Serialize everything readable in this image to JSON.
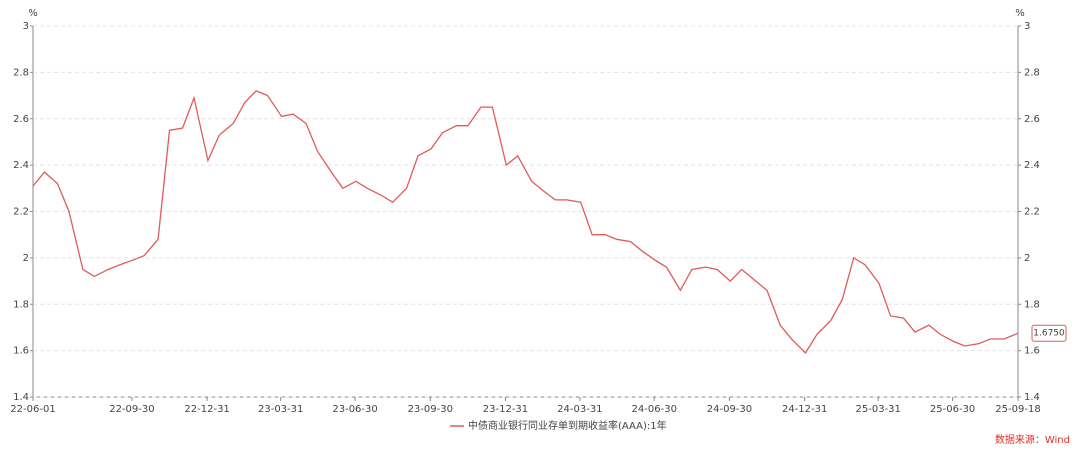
{
  "chart_data": {
    "type": "line",
    "unit_left": "%",
    "unit_right": "%",
    "x": [
      "22-06-01",
      "22-06-15",
      "22-07-01",
      "22-07-15",
      "22-08-01",
      "22-08-15",
      "22-09-01",
      "22-09-15",
      "22-10-01",
      "22-10-15",
      "22-11-01",
      "22-11-15",
      "22-12-01",
      "22-12-15",
      "23-01-01",
      "23-01-15",
      "23-02-01",
      "23-02-15",
      "23-03-01",
      "23-03-15",
      "23-04-01",
      "23-04-15",
      "23-05-01",
      "23-05-15",
      "23-06-01",
      "23-06-15",
      "23-07-01",
      "23-07-15",
      "23-08-01",
      "23-08-15",
      "23-09-01",
      "23-09-15",
      "23-10-01",
      "23-10-15",
      "23-11-01",
      "23-11-15",
      "23-12-01",
      "23-12-15",
      "24-01-01",
      "24-01-15",
      "24-02-01",
      "24-02-15",
      "24-03-01",
      "24-03-15",
      "24-04-01",
      "24-04-15",
      "24-05-01",
      "24-05-15",
      "24-06-01",
      "24-06-15",
      "24-07-01",
      "24-07-15",
      "24-08-01",
      "24-08-15",
      "24-09-01",
      "24-09-15",
      "24-10-01",
      "24-10-15",
      "24-11-01",
      "24-11-15",
      "24-12-01",
      "24-12-15",
      "25-01-01",
      "25-01-15",
      "25-02-01",
      "25-02-15",
      "25-03-01",
      "25-03-15",
      "25-04-01",
      "25-04-15",
      "25-05-01",
      "25-05-15",
      "25-06-01",
      "25-06-15",
      "25-07-01",
      "25-07-15",
      "25-08-01",
      "25-08-15",
      "25-09-01",
      "25-09-18"
    ],
    "series": [
      {
        "name": "中债商业银行同业存单到期收益率(AAA):1年",
        "color": "#e05a5a",
        "values": [
          2.31,
          2.37,
          2.32,
          2.2,
          1.95,
          1.92,
          1.95,
          1.97,
          1.99,
          2.01,
          2.08,
          2.55,
          2.56,
          2.69,
          2.42,
          2.53,
          2.58,
          2.67,
          2.72,
          2.7,
          2.61,
          2.62,
          2.58,
          2.46,
          2.37,
          2.3,
          2.33,
          2.3,
          2.27,
          2.24,
          2.3,
          2.44,
          2.47,
          2.54,
          2.57,
          2.57,
          2.65,
          2.65,
          2.4,
          2.44,
          2.33,
          2.29,
          2.25,
          2.25,
          2.24,
          2.1,
          2.1,
          2.08,
          2.07,
          2.03,
          1.99,
          1.96,
          1.86,
          1.95,
          1.96,
          1.95,
          1.9,
          1.95,
          1.9,
          1.86,
          1.71,
          1.65,
          1.59,
          1.67,
          1.73,
          1.82,
          2.0,
          1.97,
          1.89,
          1.75,
          1.74,
          1.68,
          1.71,
          1.67,
          1.64,
          1.62,
          1.63,
          1.65,
          1.65,
          1.675
        ]
      }
    ],
    "annotation": {
      "x": "25-09-18",
      "value": 1.675,
      "label": "1.6750"
    },
    "xlim": [
      "22-06-01",
      "25-09-18"
    ],
    "xticks": [
      "22-06-01",
      "22-09-30",
      "22-12-31",
      "23-03-31",
      "23-06-30",
      "23-09-30",
      "23-12-31",
      "24-03-31",
      "24-06-30",
      "24-09-30",
      "24-12-31",
      "25-03-31",
      "25-06-30",
      "25-09-18"
    ],
    "ylim": [
      1.4,
      3
    ],
    "yticks": [
      1.4,
      1.6,
      1.8,
      2,
      2.2,
      2.4,
      2.6,
      2.8,
      3
    ],
    "y2lim": [
      1.4,
      3
    ],
    "y2ticks": [
      1.4,
      1.6,
      1.8,
      2,
      2.2,
      2.4,
      2.6,
      2.8,
      3
    ],
    "grid": true,
    "source": "数据来源：Wind"
  }
}
